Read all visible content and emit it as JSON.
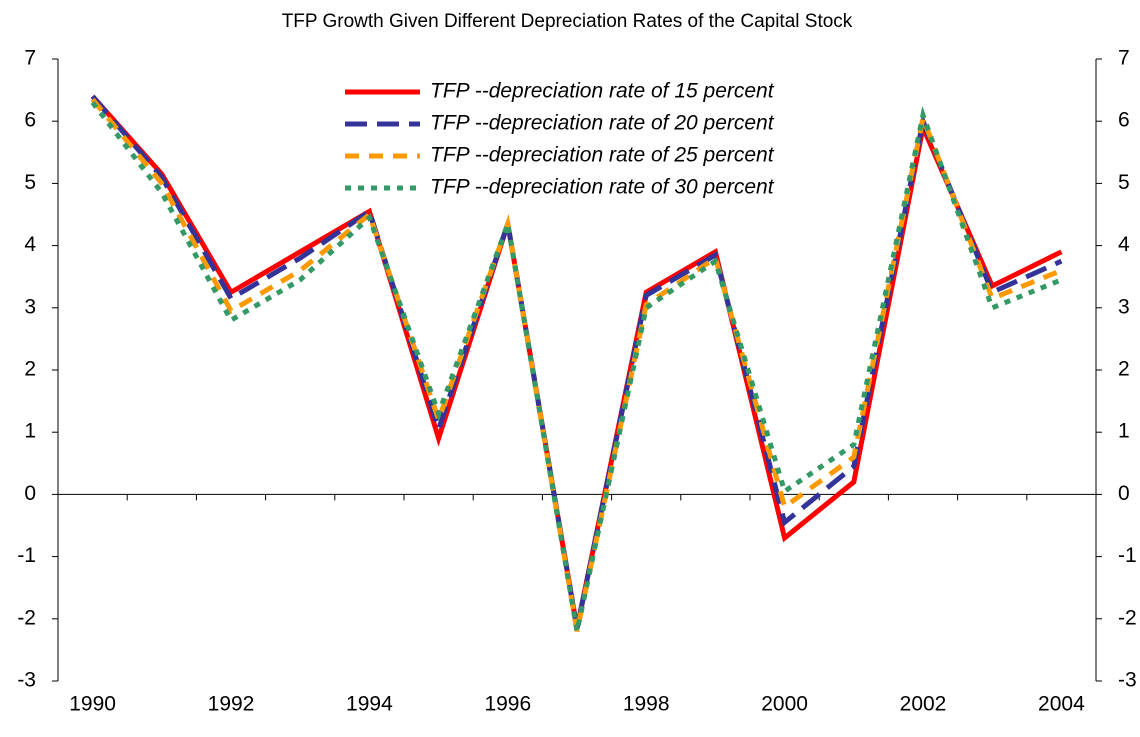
{
  "chart_data": {
    "type": "line",
    "title": "TFP Growth Given Different Depreciation Rates of the Capital Stock",
    "categories": [
      "1990",
      null,
      "1992",
      null,
      "1994",
      null,
      "1996",
      null,
      "1998",
      null,
      "2000",
      null,
      "2002",
      null,
      "2004"
    ],
    "series": [
      {
        "name": "TFP --depreciation rate of 15 percent",
        "color": "#ff0000",
        "line_style": "solid",
        "values": [
          6.4,
          5.15,
          3.25,
          3.9,
          4.55,
          0.9,
          4.35,
          -2.15,
          3.25,
          3.9,
          -0.7,
          0.2,
          5.9,
          3.35,
          3.9
        ]
      },
      {
        "name": "TFP --depreciation rate of 20 percent",
        "color": "#333399",
        "line_style": "long-dash",
        "values": [
          6.4,
          5.1,
          3.15,
          3.8,
          4.55,
          1.05,
          4.35,
          -2.15,
          3.2,
          3.85,
          -0.45,
          0.45,
          6.0,
          3.25,
          3.75
        ]
      },
      {
        "name": "TFP --depreciation rate of 25 percent",
        "color": "#ff9900",
        "line_style": "dash",
        "values": [
          6.35,
          5.0,
          2.95,
          3.6,
          4.5,
          1.2,
          4.35,
          -2.2,
          3.05,
          3.8,
          -0.2,
          0.6,
          6.05,
          3.15,
          3.6
        ]
      },
      {
        "name": "TFP --depreciation rate of 30 percent",
        "color": "#339966",
        "line_style": "dot",
        "values": [
          6.3,
          4.85,
          2.8,
          3.45,
          4.45,
          1.3,
          4.35,
          -2.2,
          3.0,
          3.75,
          0.05,
          0.8,
          6.1,
          3.0,
          3.45
        ]
      }
    ],
    "ylim": [
      -3,
      7
    ],
    "yticks": [
      -3,
      -2,
      -1,
      0,
      1,
      2,
      3,
      4,
      5,
      6,
      7
    ],
    "y2lim": [
      -3,
      7
    ],
    "y2ticks": [
      -3,
      -2,
      -1,
      0,
      1,
      2,
      3,
      4,
      5,
      6,
      7
    ],
    "grid": false
  }
}
